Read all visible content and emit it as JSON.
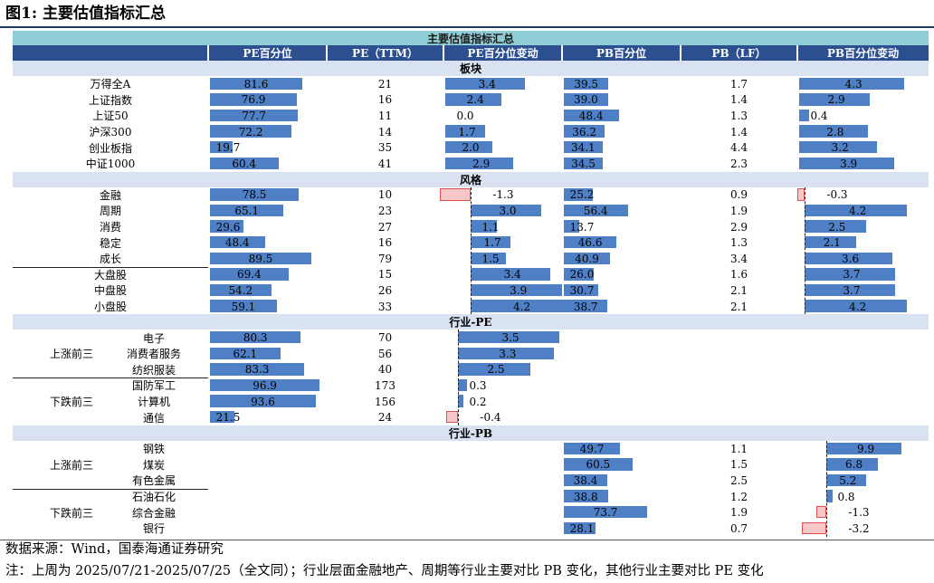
{
  "figure_title": "图1: 主要估值指标汇总",
  "table_title": "主要估值指标汇总",
  "columns": [
    "PE百分位",
    "PE（TTM）",
    "PE百分位变动",
    "PB百分位",
    "PB（LF）",
    "PB百分位变动"
  ],
  "sections": {
    "board": "板块",
    "style": "风格",
    "industry_pe": "行业-PE",
    "industry_pb": "行业-PB"
  },
  "group_labels": {
    "top3": "上涨前三",
    "bottom3": "下跌前三"
  },
  "rows": [
    {
      "section": "board",
      "name": "万得全A",
      "pe_pct": 81.6,
      "pe_ttm": "21",
      "pe_chg": 3.4,
      "pb_pct": 39.5,
      "pb_lf": "1.7",
      "pb_chg": 4.3
    },
    {
      "section": "board",
      "name": "上证指数",
      "pe_pct": 76.9,
      "pe_ttm": "16",
      "pe_chg": 2.4,
      "pb_pct": 39.0,
      "pb_lf": "1.4",
      "pb_chg": 2.9
    },
    {
      "section": "board",
      "name": "上证50",
      "pe_pct": 77.7,
      "pe_ttm": "11",
      "pe_chg": 0.0,
      "pb_pct": 48.4,
      "pb_lf": "1.3",
      "pb_chg": 0.4
    },
    {
      "section": "board",
      "name": "沪深300",
      "pe_pct": 72.2,
      "pe_ttm": "14",
      "pe_chg": 1.7,
      "pb_pct": 36.2,
      "pb_lf": "1.4",
      "pb_chg": 2.8
    },
    {
      "section": "board",
      "name": "创业板指",
      "pe_pct": 19.7,
      "pe_ttm": "35",
      "pe_chg": 2.0,
      "pb_pct": 34.1,
      "pb_lf": "4.4",
      "pb_chg": 3.2
    },
    {
      "section": "board",
      "name": "中证1000",
      "pe_pct": 60.4,
      "pe_ttm": "41",
      "pe_chg": 2.9,
      "pb_pct": 34.5,
      "pb_lf": "2.3",
      "pb_chg": 3.9
    },
    {
      "section": "style",
      "name": "金融",
      "pe_pct": 78.5,
      "pe_ttm": "10",
      "pe_chg": -1.3,
      "pb_pct": 25.2,
      "pb_lf": "0.9",
      "pb_chg": -0.3
    },
    {
      "section": "style",
      "name": "周期",
      "pe_pct": 65.1,
      "pe_ttm": "23",
      "pe_chg": 3.0,
      "pb_pct": 56.4,
      "pb_lf": "1.9",
      "pb_chg": 4.2
    },
    {
      "section": "style",
      "name": "消费",
      "pe_pct": 29.6,
      "pe_ttm": "27",
      "pe_chg": 1.1,
      "pb_pct": 13.7,
      "pb_lf": "2.9",
      "pb_chg": 2.5
    },
    {
      "section": "style",
      "name": "稳定",
      "pe_pct": 48.4,
      "pe_ttm": "16",
      "pe_chg": 1.7,
      "pb_pct": 46.6,
      "pb_lf": "1.3",
      "pb_chg": 2.1
    },
    {
      "section": "style",
      "name": "成长",
      "pe_pct": 89.5,
      "pe_ttm": "79",
      "pe_chg": 1.5,
      "pb_pct": 40.9,
      "pb_lf": "3.4",
      "pb_chg": 3.6
    },
    {
      "section": "style",
      "name": "大盘股",
      "pe_pct": 69.4,
      "pe_ttm": "15",
      "pe_chg": 3.4,
      "pb_pct": 26.0,
      "pb_lf": "1.6",
      "pb_chg": 3.7
    },
    {
      "section": "style",
      "name": "中盘股",
      "pe_pct": 54.2,
      "pe_ttm": "26",
      "pe_chg": 3.9,
      "pb_pct": 30.7,
      "pb_lf": "2.1",
      "pb_chg": 3.7
    },
    {
      "section": "style",
      "name": "小盘股",
      "pe_pct": 59.1,
      "pe_ttm": "33",
      "pe_chg": 4.2,
      "pb_pct": 38.7,
      "pb_lf": "2.1",
      "pb_chg": 4.2
    },
    {
      "section": "industry_pe",
      "group": "top3",
      "name": "电子",
      "pe_pct": 80.3,
      "pe_ttm": "70",
      "pe_chg": 3.5
    },
    {
      "section": "industry_pe",
      "group": "top3",
      "name": "消费者服务",
      "pe_pct": 62.1,
      "pe_ttm": "56",
      "pe_chg": 3.3
    },
    {
      "section": "industry_pe",
      "group": "top3",
      "name": "纺织服装",
      "pe_pct": 83.3,
      "pe_ttm": "40",
      "pe_chg": 2.5
    },
    {
      "section": "industry_pe",
      "group": "bottom3",
      "name": "国防军工",
      "pe_pct": 96.9,
      "pe_ttm": "173",
      "pe_chg": 0.3
    },
    {
      "section": "industry_pe",
      "group": "bottom3",
      "name": "计算机",
      "pe_pct": 93.6,
      "pe_ttm": "156",
      "pe_chg": 0.2
    },
    {
      "section": "industry_pe",
      "group": "bottom3",
      "name": "通信",
      "pe_pct": 21.5,
      "pe_ttm": "24",
      "pe_chg": -0.4
    },
    {
      "section": "industry_pb",
      "group": "top3",
      "name": "钢铁",
      "pb_pct": 49.7,
      "pb_lf": "1.1",
      "pb_chg": 9.9
    },
    {
      "section": "industry_pb",
      "group": "top3",
      "name": "煤炭",
      "pb_pct": 60.5,
      "pb_lf": "1.5",
      "pb_chg": 6.8
    },
    {
      "section": "industry_pb",
      "group": "top3",
      "name": "有色金属",
      "pb_pct": 38.4,
      "pb_lf": "2.5",
      "pb_chg": 5.2
    },
    {
      "section": "industry_pb",
      "group": "bottom3",
      "name": "石油石化",
      "pb_pct": 38.8,
      "pb_lf": "1.2",
      "pb_chg": 0.8
    },
    {
      "section": "industry_pb",
      "group": "bottom3",
      "name": "综合金融",
      "pb_pct": 73.7,
      "pb_lf": "1.9",
      "pb_chg": -1.3
    },
    {
      "section": "industry_pb",
      "group": "bottom3",
      "name": "银行",
      "pb_pct": 28.1,
      "pb_lf": "0.7",
      "pb_chg": -3.2
    }
  ],
  "footer": {
    "source": "数据来源：Wind，国泰海通证券研究",
    "note": "注：上周为 2025/07/21-2025/07/25（全文同）；行业层面金融地产、周期等行业主要对比 PB 变化，其他行业主要对比 PE 变化"
  },
  "colors": {
    "bar": "#4f7fc4",
    "neg_bar": "#f8c8c8",
    "header": "#2c4f8f",
    "title_band": "#8fcdd7",
    "section_band": "#d9e2f0"
  }
}
